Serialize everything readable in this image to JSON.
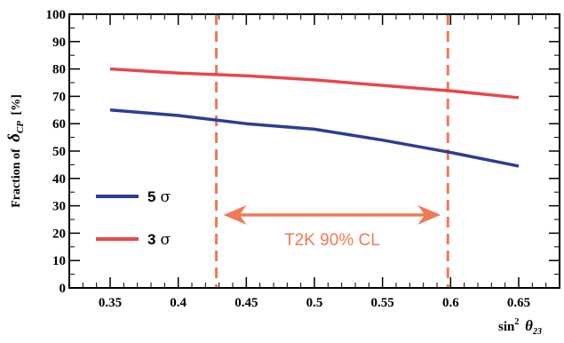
{
  "chart_data": {
    "type": "line",
    "x": [
      0.35,
      0.4,
      0.45,
      0.5,
      0.55,
      0.6,
      0.65
    ],
    "series": [
      {
        "name": "5",
        "symbol": "σ",
        "color": "#2c3e91",
        "values": [
          65,
          63,
          60,
          58,
          54,
          49.5,
          44.5
        ]
      },
      {
        "name": "3",
        "symbol": "σ",
        "color": "#e8474a",
        "values": [
          80,
          78.5,
          77.5,
          76,
          74,
          72,
          69.5
        ]
      }
    ],
    "xlim": [
      0.32,
      0.68
    ],
    "ylim": [
      0,
      100
    ],
    "xticks": [
      0.35,
      0.4,
      0.45,
      0.5,
      0.55,
      0.6,
      0.65
    ],
    "xtick_labels": [
      "0.35",
      "0.4",
      "0.45",
      "0.5",
      "0.55",
      "0.6",
      "0.65"
    ],
    "yticks": [
      0,
      10,
      20,
      30,
      40,
      50,
      60,
      70,
      80,
      90,
      100
    ],
    "ytick_labels": [
      "0",
      "10",
      "20",
      "30",
      "40",
      "50",
      "60",
      "70",
      "80",
      "90",
      "100"
    ],
    "xlabel": {
      "base": "sin",
      "sup": "2",
      "symbol": "θ",
      "sub": "23"
    },
    "ylabel": {
      "prefix": "Fraction of",
      "symbol": "δ",
      "sub": "CP",
      "unit": "[%]"
    },
    "vlines": [
      0.428,
      0.598
    ],
    "annotation": {
      "text": "T2K 90% CL",
      "x_from": 0.428,
      "x_to": 0.598,
      "y": 26
    },
    "legend_placement": "bottom-left",
    "grid": false,
    "colors": {
      "annotation": "#f07a55",
      "frame": "#000000"
    }
  }
}
